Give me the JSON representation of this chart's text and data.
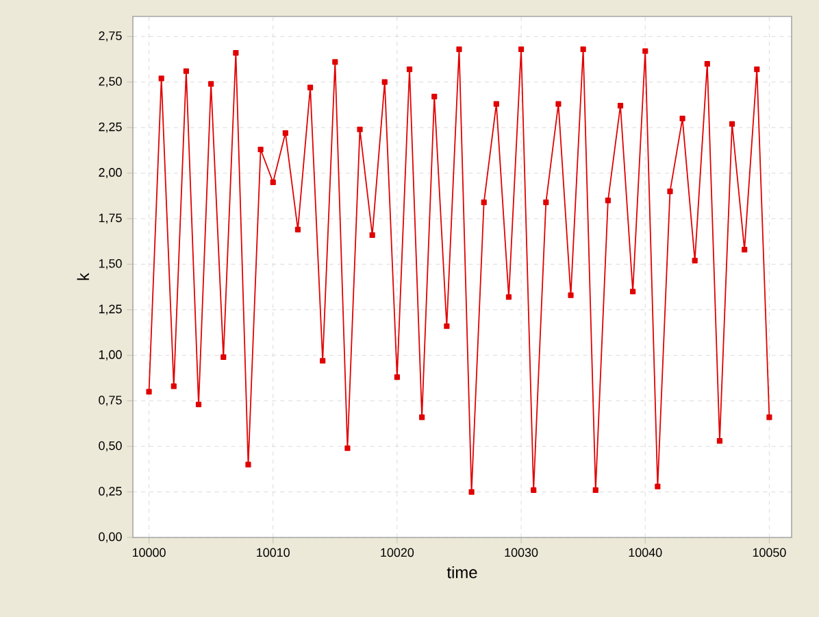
{
  "chart_data": {
    "type": "line",
    "xlabel": "time",
    "ylabel": "k",
    "x": [
      10000,
      10001,
      10002,
      10003,
      10004,
      10005,
      10006,
      10007,
      10008,
      10009,
      10010,
      10011,
      10012,
      10013,
      10014,
      10015,
      10016,
      10017,
      10018,
      10019,
      10020,
      10021,
      10022,
      10023,
      10024,
      10025,
      10026,
      10027,
      10028,
      10029,
      10030,
      10031,
      10032,
      10033,
      10034,
      10035,
      10036,
      10037,
      10038,
      10039,
      10040,
      10041,
      10042,
      10043,
      10044,
      10045,
      10046,
      10047,
      10048,
      10049,
      10050
    ],
    "series": [
      {
        "color": "#e00000",
        "values": [
          0.8,
          2.52,
          0.83,
          2.56,
          0.73,
          2.49,
          0.99,
          2.66,
          0.4,
          2.13,
          1.95,
          2.22,
          1.69,
          2.47,
          0.97,
          2.61,
          0.49,
          2.24,
          1.66,
          2.5,
          0.88,
          2.57,
          0.66,
          2.42,
          1.16,
          2.68,
          0.25,
          1.84,
          2.38,
          1.32,
          2.68,
          0.26,
          1.84,
          2.38,
          1.33,
          2.68,
          0.26,
          1.85,
          2.37,
          1.35,
          2.67,
          0.28,
          1.9,
          2.3,
          1.52,
          2.6,
          0.53,
          2.27,
          1.58,
          2.57,
          0.66
        ]
      }
    ],
    "xlim": [
      9998.7,
      10051.8
    ],
    "ylim": [
      0,
      2.86
    ],
    "xticks": [
      10000,
      10010,
      10020,
      10030,
      10040,
      10050
    ],
    "yticks": [
      {
        "value": 0,
        "label": "0,00"
      },
      {
        "value": 0.25,
        "label": "0,25"
      },
      {
        "value": 0.5,
        "label": "0,50"
      },
      {
        "value": 0.75,
        "label": "0,75"
      },
      {
        "value": 1,
        "label": "1,00"
      },
      {
        "value": 1.25,
        "label": "1,25"
      },
      {
        "value": 1.5,
        "label": "1,50"
      },
      {
        "value": 1.75,
        "label": "1,75"
      },
      {
        "value": 2,
        "label": "2,00"
      },
      {
        "value": 2.25,
        "label": "2,25"
      },
      {
        "value": 2.5,
        "label": "2,50"
      },
      {
        "value": 2.75,
        "label": "2,75"
      }
    ],
    "grid": true,
    "marker": "square",
    "line_style": "solid"
  }
}
